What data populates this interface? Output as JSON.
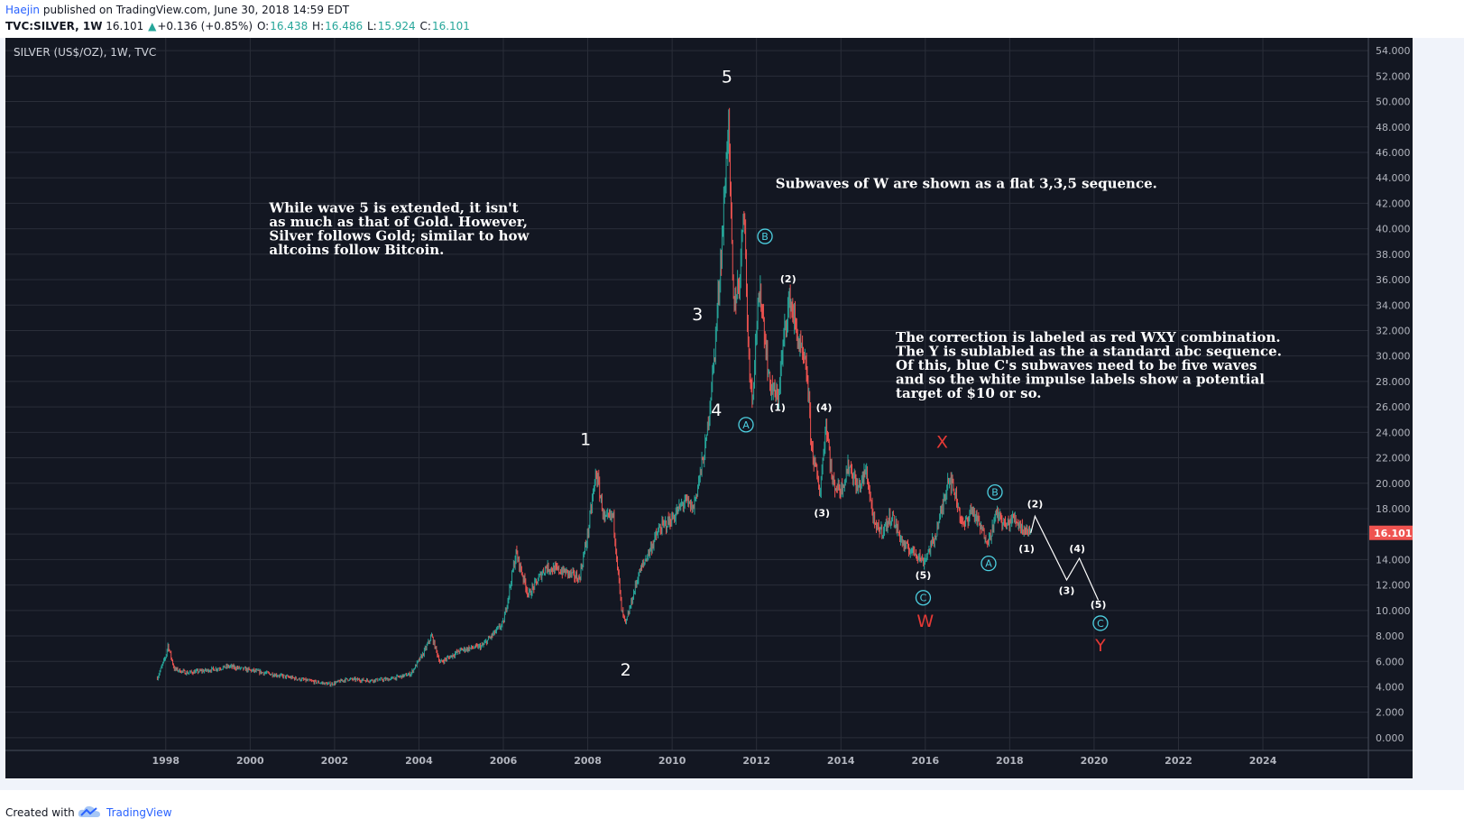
{
  "header": {
    "author": "Haejin",
    "published": " published on TradingView.com, June 30, 2018 14:59 EDT",
    "symbol": "TVC:SILVER, 1W",
    "last": "16.101",
    "up_arrow": "▲",
    "change": "+0.136 (+0.85%)",
    "o_label": "O:",
    "o_val": "16.438",
    "h_label": "H:",
    "h_val": "16.486",
    "l_label": "L:",
    "l_val": "15.924",
    "c_label": "C:",
    "c_val": "16.101"
  },
  "footer": {
    "created_with": "Created with",
    "brand": "TradingView"
  },
  "colors": {
    "bg": "#131722",
    "grid": "#2a2e39",
    "up": "#26a69a",
    "down": "#ef5350",
    "white": "#ffffff",
    "cyan": "#4dd0e1",
    "red": "#e53935",
    "price_tag": "#ef5350"
  },
  "chart_data": {
    "type": "line",
    "title": "SILVER (US$/OZ), 1W, TVC",
    "x": [
      "1998",
      "2000",
      "2002",
      "2004",
      "2006",
      "2008",
      "2010",
      "2012",
      "2014",
      "2016",
      "2018",
      "2020",
      "2022",
      "2024"
    ],
    "y_ticks": [
      "54.000",
      "52.000",
      "50.000",
      "48.000",
      "46.000",
      "44.000",
      "42.000",
      "40.000",
      "38.000",
      "36.000",
      "34.000",
      "32.000",
      "30.000",
      "28.000",
      "26.000",
      "24.000",
      "22.000",
      "20.000",
      "18.000",
      "16.000",
      "14.000",
      "12.000",
      "10.000",
      "8.000",
      "6.000",
      "4.000",
      "2.000",
      "0.000"
    ],
    "ylim": [
      -1,
      55
    ],
    "xlim": [
      1994.2,
      2026.5
    ],
    "grid": true,
    "last_price": "16.101",
    "series": [
      {
        "values": [
          [
            1997.8,
            4.7
          ],
          [
            1998.0,
            6.4
          ],
          [
            1998.05,
            7.3
          ],
          [
            1998.2,
            5.4
          ],
          [
            1998.5,
            5.1
          ],
          [
            1999.0,
            5.3
          ],
          [
            1999.5,
            5.6
          ],
          [
            2000.0,
            5.3
          ],
          [
            2000.5,
            5.0
          ],
          [
            2001.0,
            4.7
          ],
          [
            2001.5,
            4.4
          ],
          [
            2001.9,
            4.2
          ],
          [
            2002.3,
            4.6
          ],
          [
            2002.8,
            4.5
          ],
          [
            2003.3,
            4.6
          ],
          [
            2003.8,
            5.0
          ],
          [
            2004.1,
            6.6
          ],
          [
            2004.3,
            8.0
          ],
          [
            2004.5,
            5.9
          ],
          [
            2005.0,
            6.9
          ],
          [
            2005.5,
            7.2
          ],
          [
            2006.0,
            9.0
          ],
          [
            2006.3,
            14.5
          ],
          [
            2006.6,
            11.2
          ],
          [
            2007.0,
            13.4
          ],
          [
            2007.5,
            13.0
          ],
          [
            2007.8,
            12.5
          ],
          [
            2008.0,
            16.0
          ],
          [
            2008.2,
            20.9
          ],
          [
            2008.4,
            17.0
          ],
          [
            2008.6,
            17.5
          ],
          [
            2008.8,
            10.0
          ],
          [
            2008.9,
            8.9
          ],
          [
            2009.2,
            12.8
          ],
          [
            2009.7,
            16.4
          ],
          [
            2010.0,
            17.2
          ],
          [
            2010.3,
            18.6
          ],
          [
            2010.5,
            18.0
          ],
          [
            2010.8,
            23.0
          ],
          [
            2011.0,
            30.0
          ],
          [
            2011.2,
            40.0
          ],
          [
            2011.33,
            48.7
          ],
          [
            2011.45,
            34.0
          ],
          [
            2011.6,
            36.0
          ],
          [
            2011.7,
            42.5
          ],
          [
            2011.8,
            31.0
          ],
          [
            2011.9,
            26.5
          ],
          [
            2012.0,
            32.5
          ],
          [
            2012.1,
            35.0
          ],
          [
            2012.3,
            28.0
          ],
          [
            2012.5,
            26.5
          ],
          [
            2012.7,
            33.0
          ],
          [
            2012.8,
            34.5
          ],
          [
            2013.0,
            31.0
          ],
          [
            2013.2,
            28.5
          ],
          [
            2013.3,
            23.0
          ],
          [
            2013.5,
            19.2
          ],
          [
            2013.65,
            24.9
          ],
          [
            2013.8,
            20.0
          ],
          [
            2014.0,
            19.5
          ],
          [
            2014.2,
            21.5
          ],
          [
            2014.4,
            19.5
          ],
          [
            2014.6,
            21.0
          ],
          [
            2014.8,
            16.5
          ],
          [
            2015.0,
            16.3
          ],
          [
            2015.2,
            17.5
          ],
          [
            2015.5,
            15.0
          ],
          [
            2015.8,
            14.5
          ],
          [
            2015.95,
            13.8
          ],
          [
            2016.2,
            15.5
          ],
          [
            2016.4,
            18.0
          ],
          [
            2016.55,
            20.6
          ],
          [
            2016.7,
            19.3
          ],
          [
            2016.9,
            16.5
          ],
          [
            2017.1,
            18.0
          ],
          [
            2017.35,
            16.2
          ],
          [
            2017.5,
            15.5
          ],
          [
            2017.7,
            17.7
          ],
          [
            2017.9,
            16.6
          ],
          [
            2018.1,
            17.3
          ],
          [
            2018.3,
            16.5
          ],
          [
            2018.5,
            16.1
          ]
        ]
      },
      {
        "values": [
          [
            2018.5,
            16.1
          ],
          [
            2018.6,
            17.4
          ],
          [
            2019.35,
            12.4
          ],
          [
            2019.65,
            14.1
          ],
          [
            2020.1,
            10.8
          ]
        ]
      }
    ],
    "annotations": [
      {
        "label": "5",
        "x": 2011.3,
        "y": 51.5,
        "color": "#ffffff"
      },
      {
        "label": "3",
        "x": 2010.6,
        "y": 32.8,
        "color": "#ffffff"
      },
      {
        "label": "4",
        "x": 2011.05,
        "y": 25.3,
        "color": "#ffffff"
      },
      {
        "label": "1",
        "x": 2007.95,
        "y": 23.0,
        "color": "#ffffff"
      },
      {
        "label": "2",
        "x": 2008.9,
        "y": 4.9,
        "color": "#ffffff"
      },
      {
        "label": "(2)",
        "x": 2012.75,
        "y": 35.8,
        "color": "#ffffff"
      },
      {
        "label": "(1)",
        "x": 2012.5,
        "y": 25.7,
        "color": "#ffffff"
      },
      {
        "label": "(4)",
        "x": 2013.6,
        "y": 25.7,
        "color": "#ffffff"
      },
      {
        "label": "(3)",
        "x": 2013.55,
        "y": 17.4,
        "color": "#ffffff"
      },
      {
        "label": "X",
        "x": 2016.4,
        "y": 22.8,
        "color": "#e53935"
      },
      {
        "label": "(5)",
        "x": 2015.95,
        "y": 12.5,
        "color": "#ffffff"
      },
      {
        "label": "W",
        "x": 2016.0,
        "y": 8.7,
        "color": "#e53935"
      },
      {
        "label": "(2)",
        "x": 2018.6,
        "y": 18.1,
        "color": "#ffffff"
      },
      {
        "label": "(1)",
        "x": 2018.4,
        "y": 14.6,
        "color": "#ffffff"
      },
      {
        "label": "(4)",
        "x": 2019.6,
        "y": 14.6,
        "color": "#ffffff"
      },
      {
        "label": "(3)",
        "x": 2019.35,
        "y": 11.3,
        "color": "#ffffff"
      },
      {
        "label": "(5)",
        "x": 2020.1,
        "y": 10.2,
        "color": "#ffffff"
      },
      {
        "label": "Y",
        "x": 2020.15,
        "y": 6.8,
        "color": "#e53935"
      }
    ],
    "circled_labels": [
      {
        "label": "B",
        "x": 2012.2,
        "y": 39.4
      },
      {
        "label": "A",
        "x": 2011.75,
        "y": 24.6
      },
      {
        "label": "B",
        "x": 2017.65,
        "y": 19.3
      },
      {
        "label": "A",
        "x": 2017.5,
        "y": 13.7
      },
      {
        "label": "C",
        "x": 2015.95,
        "y": 11.0
      },
      {
        "label": "C",
        "x": 2020.15,
        "y": 9.0
      }
    ],
    "notes": [
      {
        "lines": [
          "While wave 5 is extended, it isn't",
          "as much as that of Gold. However,",
          "Silver follows Gold; similar to how",
          "altcoins follow Bitcoin."
        ],
        "x": 2000.45,
        "y": 41.3
      },
      {
        "lines": [
          "Subwaves of W are shown as a flat 3,3,5 sequence."
        ],
        "x": 2012.45,
        "y": 43.2
      },
      {
        "lines": [
          "The correction is labeled as red WXY combination.",
          "The Y is sublabled as the a standard abc sequence.",
          "Of this, blue C's subwaves need to be five waves",
          "and so the white impulse labels show a potential",
          "target of $10 or so."
        ],
        "x": 2015.3,
        "y": 31.1
      }
    ]
  }
}
